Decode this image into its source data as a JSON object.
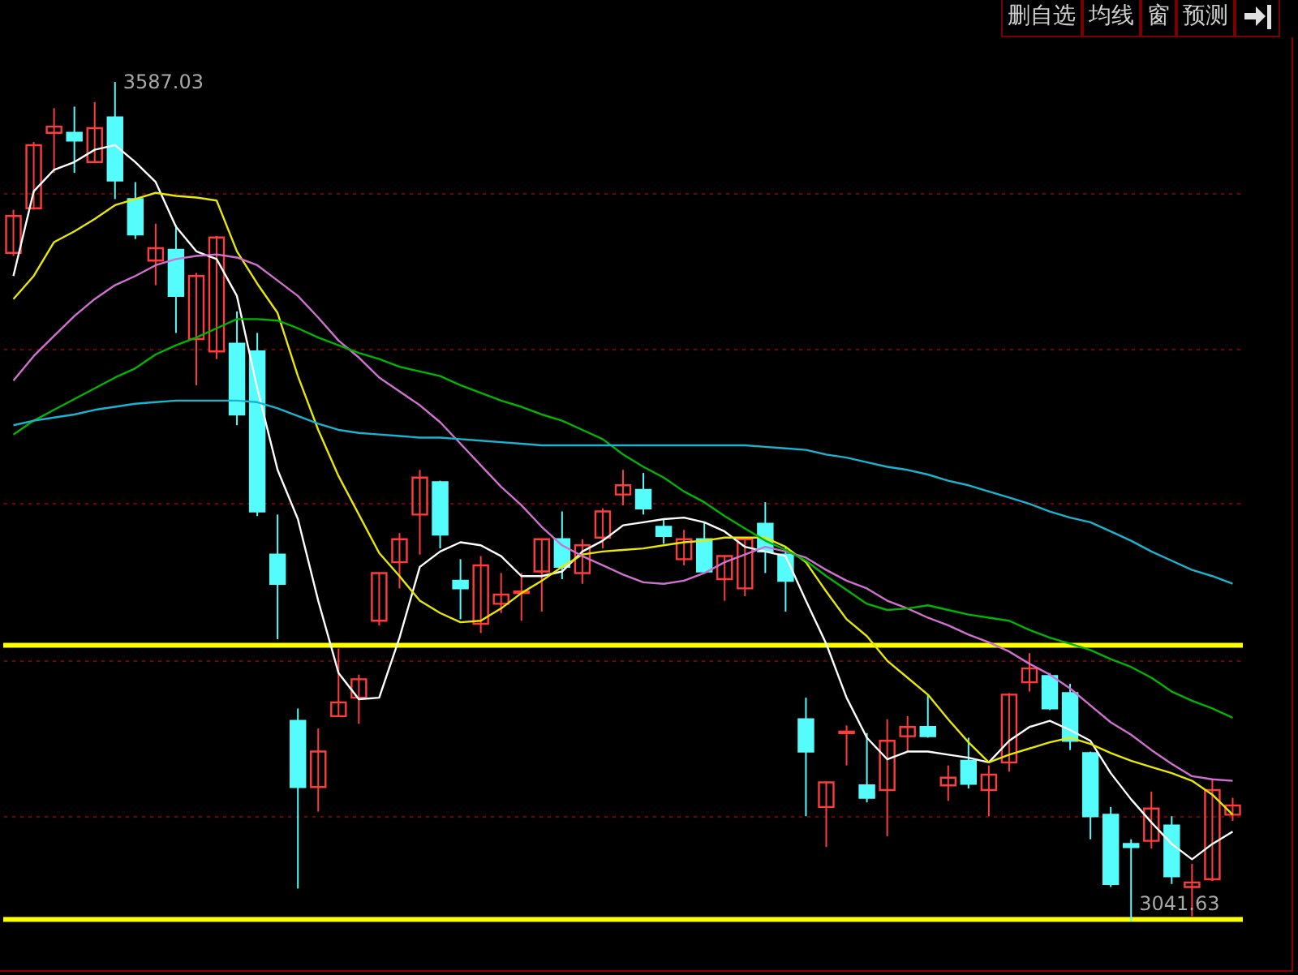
{
  "chart_data": {
    "type": "candlestick",
    "categories": [
      null,
      null,
      null,
      null,
      null,
      null,
      null,
      null,
      null,
      null,
      null,
      null,
      null,
      null,
      null,
      null,
      null,
      null,
      null,
      null,
      null,
      null,
      null,
      null,
      null,
      null,
      null,
      null,
      null,
      null,
      null,
      null,
      null,
      null,
      null,
      null,
      null,
      null,
      null,
      null,
      null,
      null,
      null,
      null,
      null,
      null,
      null,
      null,
      null,
      null,
      null,
      null,
      null,
      null,
      null,
      null,
      null,
      null,
      null,
      null,
      null
    ],
    "ohlc": [
      [
        3476,
        3504,
        3474,
        3500
      ],
      [
        3505,
        3548,
        3504,
        3546
      ],
      [
        3554,
        3570,
        3528,
        3558
      ],
      [
        3554,
        3571,
        3528,
        3549
      ],
      [
        3535,
        3574,
        3535,
        3557
      ],
      [
        3564,
        3587.03,
        3511,
        3523
      ],
      [
        3511,
        3522,
        3485,
        3488
      ],
      [
        3471,
        3495,
        3455,
        3479
      ],
      [
        3478,
        3494,
        3424,
        3448
      ],
      [
        3420,
        3463,
        3390,
        3461
      ],
      [
        3412,
        3487,
        3407,
        3486
      ],
      [
        3417,
        3438,
        3364,
        3371
      ],
      [
        3412,
        3424,
        3305,
        3308
      ],
      [
        3280,
        3306,
        3225,
        3261
      ],
      [
        3172,
        3180,
        3063,
        3129
      ],
      [
        3129,
        3167,
        3113,
        3152
      ],
      [
        3175,
        3219,
        3175,
        3184
      ],
      [
        3187,
        3202,
        3170,
        3199
      ],
      [
        3237,
        3268,
        3234,
        3268
      ],
      [
        3275,
        3294,
        3258,
        3290
      ],
      [
        3306,
        3335,
        3280,
        3330
      ],
      [
        3327,
        3328,
        3284,
        3293
      ],
      [
        3263,
        3277,
        3238,
        3258
      ],
      [
        3235,
        3279,
        3229,
        3273
      ],
      [
        3248,
        3268,
        3242,
        3254
      ],
      [
        3255,
        3268,
        3237,
        3256
      ],
      [
        3269,
        3290,
        3243,
        3290
      ],
      [
        3290,
        3308,
        3264,
        3272
      ],
      [
        3268,
        3290,
        3261,
        3286
      ],
      [
        3291,
        3310,
        3284,
        3308
      ],
      [
        3319,
        3335,
        3312,
        3325
      ],
      [
        3322,
        3333,
        3306,
        3310
      ],
      [
        3298,
        3303,
        3287,
        3292
      ],
      [
        3277,
        3296,
        3273,
        3290
      ],
      [
        3290,
        3301,
        3268,
        3269
      ],
      [
        3264,
        3279,
        3250,
        3279
      ],
      [
        3258,
        3291,
        3253,
        3290
      ],
      [
        3300,
        3314,
        3268,
        3282
      ],
      [
        3280,
        3285,
        3243,
        3263
      ],
      [
        3173,
        3187,
        3110,
        3152
      ],
      [
        3116,
        3132,
        3090,
        3132
      ],
      [
        3164,
        3169,
        3143,
        3165
      ],
      [
        3130,
        3164,
        3119,
        3122
      ],
      [
        3127,
        3173,
        3097,
        3159
      ],
      [
        3162,
        3175,
        3152,
        3168
      ],
      [
        3168,
        3189,
        3161,
        3162
      ],
      [
        3130,
        3143,
        3120,
        3135
      ],
      [
        3146,
        3161,
        3128,
        3131
      ],
      [
        3127,
        3143,
        3110,
        3137
      ],
      [
        3145,
        3190,
        3139,
        3189
      ],
      [
        3197,
        3216,
        3191,
        3206
      ],
      [
        3201,
        3203,
        3179,
        3180
      ],
      [
        3190,
        3196,
        3153,
        3159
      ],
      [
        3151,
        3152,
        3095,
        3110
      ],
      [
        3111,
        3116,
        3064,
        3066
      ],
      [
        3092,
        3095,
        3041.63,
        3090
      ],
      [
        3094,
        3126,
        3089,
        3115
      ],
      [
        3104,
        3110,
        3066,
        3071
      ],
      [
        3064,
        3079,
        3045,
        3067
      ],
      [
        3069,
        3134,
        3068,
        3127
      ],
      [
        3111,
        3122,
        3107,
        3117
      ]
    ],
    "series": [
      {
        "type": "line",
        "color": "#ffffff",
        "values": [
          3461,
          3516,
          3530,
          3535,
          3543,
          3546,
          3535,
          3522,
          3493,
          3477,
          3472,
          3448,
          3388,
          3335,
          3303,
          3250,
          3203,
          3186,
          3187,
          3226,
          3272,
          3282,
          3288,
          3286,
          3279,
          3266,
          3266,
          3269,
          3282,
          3289,
          3299,
          3301,
          3303,
          3304,
          3301,
          3295,
          3285,
          3282,
          3279,
          3250,
          3222,
          3187,
          3161,
          3147,
          3152,
          3152,
          3150,
          3148,
          3145,
          3159,
          3168,
          3172,
          3166,
          3159,
          3138,
          3121,
          3106,
          3092,
          3082,
          3092,
          3100
        ]
      },
      {
        "type": "line",
        "color": "#e8e800",
        "values": [
          3446,
          3461,
          3483,
          3490,
          3498,
          3507,
          3511,
          3515,
          3513,
          3512,
          3510,
          3477,
          3456,
          3437,
          3396,
          3361,
          3331,
          3306,
          3281,
          3266,
          3250,
          3242,
          3236,
          3237,
          3245,
          3255,
          3263,
          3272,
          3280,
          3282,
          3283,
          3284,
          3286,
          3288,
          3289,
          3291,
          3291,
          3291,
          3285,
          3275,
          3256,
          3238,
          3227,
          3211,
          3200,
          3189,
          3173,
          3158,
          3145,
          3150,
          3154,
          3158,
          3161,
          3157,
          3151,
          3146,
          3142,
          3138,
          3133,
          3124,
          3111
        ]
      },
      {
        "type": "line",
        "color": "#d070d0",
        "values": [
          3393,
          3409,
          3422,
          3435,
          3446,
          3455,
          3461,
          3468,
          3472,
          3474,
          3475,
          3473,
          3468,
          3458,
          3448,
          3434,
          3419,
          3408,
          3395,
          3386,
          3377,
          3366,
          3352,
          3338,
          3324,
          3312,
          3298,
          3286,
          3279,
          3273,
          3267,
          3262,
          3261,
          3263,
          3268,
          3275,
          3280,
          3285,
          3282,
          3278,
          3270,
          3263,
          3258,
          3250,
          3245,
          3239,
          3234,
          3228,
          3223,
          3217,
          3209,
          3202,
          3193,
          3182,
          3171,
          3163,
          3153,
          3144,
          3136,
          3134,
          3133
        ]
      },
      {
        "type": "line",
        "color": "#00b400",
        "values": [
          3358,
          3367,
          3374,
          3381,
          3388,
          3395,
          3401,
          3410,
          3416,
          3421,
          3427,
          3433,
          3433,
          3432,
          3427,
          3421,
          3416,
          3411,
          3407,
          3402,
          3399,
          3396,
          3390,
          3385,
          3380,
          3376,
          3371,
          3367,
          3361,
          3355,
          3345,
          3337,
          3330,
          3321,
          3314,
          3305,
          3297,
          3289,
          3283,
          3276,
          3266,
          3257,
          3248,
          3244,
          3245,
          3247,
          3244,
          3241,
          3239,
          3237,
          3231,
          3226,
          3222,
          3218,
          3212,
          3207,
          3200,
          3191,
          3185,
          3180,
          3174
        ]
      },
      {
        "type": "line",
        "color": "#18b4d0",
        "values": [
          3364,
          3367,
          3369,
          3371,
          3374,
          3376,
          3378,
          3379,
          3380,
          3380,
          3380,
          3380,
          3379,
          3375,
          3370,
          3365,
          3361,
          3359,
          3358,
          3357,
          3356,
          3356,
          3355,
          3354,
          3353,
          3352,
          3351,
          3351,
          3351,
          3351,
          3351,
          3351,
          3351,
          3351,
          3351,
          3351,
          3351,
          3350,
          3349,
          3348,
          3345,
          3343,
          3340,
          3337,
          3335,
          3332,
          3328,
          3325,
          3321,
          3317,
          3313,
          3308,
          3304,
          3301,
          3295,
          3289,
          3282,
          3276,
          3270,
          3266,
          3261
        ]
      }
    ],
    "ylim": [
      3010,
      3615
    ],
    "yticks": [
      {
        "value": 3110,
        "label": null
      },
      {
        "value": 3211,
        "label": null
      },
      {
        "value": 3314,
        "label": null
      },
      {
        "value": 3414,
        "label": null
      },
      {
        "value": 3515,
        "label": null
      }
    ],
    "grid": "y",
    "ref_lines": [
      {
        "axis": "y",
        "value": 3221,
        "color": "#ffff00"
      },
      {
        "axis": "y",
        "value": 3043,
        "color": "#ffff00"
      }
    ],
    "annotations": [
      "删自选",
      "均线",
      "窗",
      "预测",
      "3587.03",
      "3041.63"
    ]
  }
}
